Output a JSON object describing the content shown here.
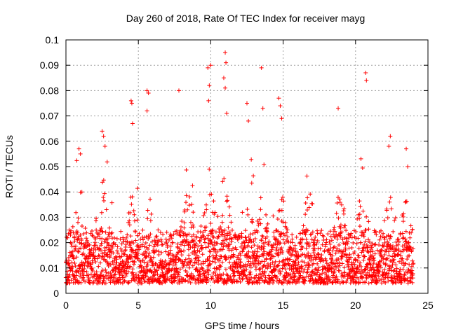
{
  "chart_data": {
    "type": "scatter",
    "title": "Day 260 of 2018, Rate Of TEC Index for receiver mayg",
    "xlabel": "GPS time / hours",
    "ylabel": "ROTI / TECUs",
    "xlim": [
      0,
      25
    ],
    "ylim": [
      0,
      0.1
    ],
    "x_ticks": [
      0,
      5,
      10,
      15,
      20,
      25
    ],
    "x_tick_labels": [
      "0",
      "5",
      "10",
      "15",
      "20",
      "25"
    ],
    "y_ticks": [
      0,
      0.01,
      0.02,
      0.03,
      0.04,
      0.05,
      0.06,
      0.07,
      0.08,
      0.09,
      0.1
    ],
    "y_tick_labels": [
      "0",
      "0.01",
      "0.02",
      "0.03",
      "0.04",
      "0.05",
      "0.06",
      "0.07",
      "0.08",
      "0.09",
      "0.1"
    ],
    "grid": true,
    "marker": "+",
    "color": "#ff0000",
    "series": [
      {
        "name": "ROTI",
        "data_range": [
          0,
          24
        ],
        "baseline_band": [
          0.004,
          0.025
        ],
        "typical_peak": 0.04,
        "notable_points": [
          [
            0.9,
            0.057
          ],
          [
            1.0,
            0.055
          ],
          [
            1.1,
            0.04
          ],
          [
            2.5,
            0.064
          ],
          [
            2.6,
            0.062
          ],
          [
            2.7,
            0.058
          ],
          [
            4.5,
            0.076
          ],
          [
            4.55,
            0.075
          ],
          [
            4.6,
            0.067
          ],
          [
            5.6,
            0.08
          ],
          [
            5.7,
            0.079
          ],
          [
            5.6,
            0.072
          ],
          [
            7.8,
            0.08
          ],
          [
            9.8,
            0.089
          ],
          [
            9.9,
            0.082
          ],
          [
            10.0,
            0.09
          ],
          [
            9.85,
            0.076
          ],
          [
            11.0,
            0.095
          ],
          [
            11.05,
            0.091
          ],
          [
            10.9,
            0.085
          ],
          [
            11.0,
            0.081
          ],
          [
            11.1,
            0.071
          ],
          [
            12.5,
            0.075
          ],
          [
            12.6,
            0.068
          ],
          [
            13.5,
            0.089
          ],
          [
            13.6,
            0.073
          ],
          [
            14.7,
            0.077
          ],
          [
            14.8,
            0.074
          ],
          [
            14.9,
            0.069
          ],
          [
            18.8,
            0.073
          ],
          [
            20.7,
            0.087
          ],
          [
            20.75,
            0.084
          ],
          [
            22.4,
            0.062
          ],
          [
            22.3,
            0.058
          ],
          [
            23.5,
            0.057
          ],
          [
            23.6,
            0.05
          ]
        ]
      }
    ]
  }
}
